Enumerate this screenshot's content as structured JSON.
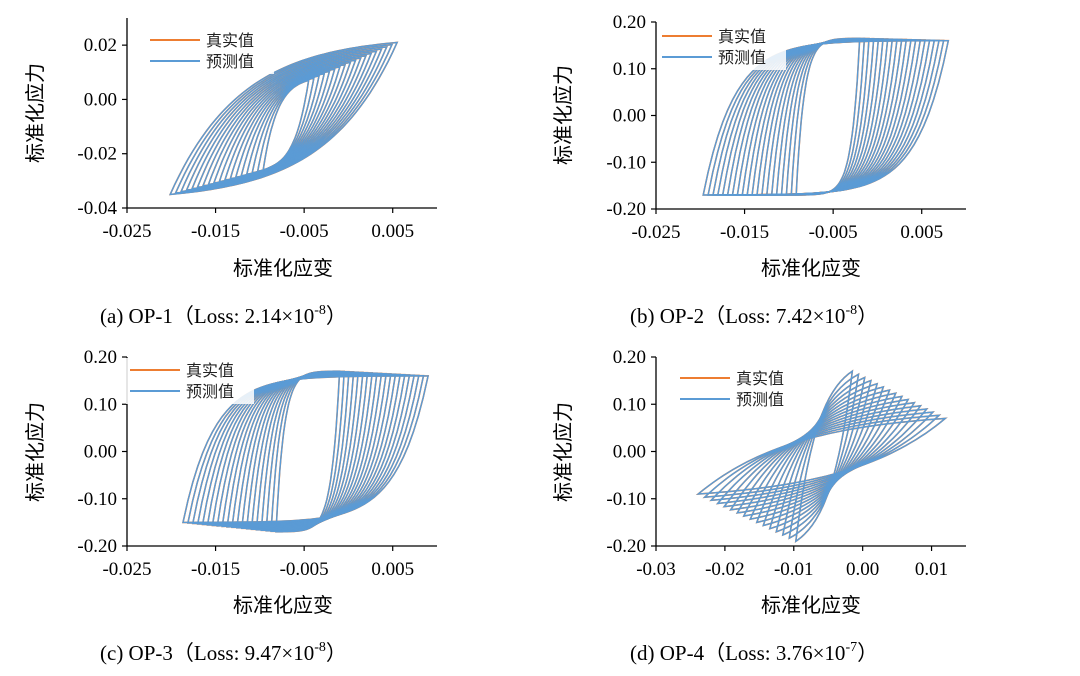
{
  "chart_data": [
    {
      "id": "a",
      "type": "line",
      "caption": "(a) OP-1（Loss: 2.14×10",
      "caption_exp": "-8",
      "caption_end": "）",
      "xlabel": "标准化应变",
      "ylabel": "标准化应力",
      "xlim": [
        -0.025,
        0.01
      ],
      "ylim": [
        -0.04,
        0.03
      ],
      "xticks": [
        "-0.025",
        "-0.015",
        "-0.005",
        "0.005"
      ],
      "xtick_values": [
        -0.025,
        -0.015,
        -0.005,
        0.005
      ],
      "yticks": [
        "0.02",
        "0.00",
        "-0.02",
        "-0.04"
      ],
      "ytick_values": [
        0.02,
        0.0,
        -0.02,
        -0.04
      ],
      "legend": [
        "真实值",
        "预测值"
      ],
      "legend_position": "top-left",
      "series": [
        {
          "name": "真实值",
          "color": "#ed7d31",
          "loops": {
            "count": 18,
            "amp_start": 0.0025,
            "amp_end": 0.0125,
            "center": -0.007,
            "y_pos_start": 0.007,
            "y_pos_end": 0.021,
            "y_neg_start": -0.026,
            "y_neg_end": -0.035,
            "y_neg_lead": 0.3,
            "k": 3.2
          }
        },
        {
          "name": "预测值",
          "color": "#5b9bd5",
          "loops": {
            "count": 18,
            "amp_start": 0.0025,
            "amp_end": 0.0125,
            "center": -0.007,
            "y_pos_start": 0.007,
            "y_pos_end": 0.021,
            "y_neg_start": -0.026,
            "y_neg_end": -0.035,
            "y_neg_lead": 0.3,
            "k": 3.2
          }
        }
      ]
    },
    {
      "id": "b",
      "type": "line",
      "caption": "(b) OP-2（Loss: 7.42×10",
      "caption_exp": "-8",
      "caption_end": "）",
      "xlabel": "标准化应变",
      "ylabel": "标准化应力",
      "xlim": [
        -0.025,
        0.01
      ],
      "ylim": [
        -0.2,
        0.2
      ],
      "xticks": [
        "-0.025",
        "-0.015",
        "-0.005",
        "0.005"
      ],
      "xtick_values": [
        -0.025,
        -0.015,
        -0.005,
        0.005
      ],
      "yticks": [
        "0.20",
        "0.10",
        "0.00",
        "-0.10",
        "-0.20"
      ],
      "ytick_values": [
        0.2,
        0.1,
        0.0,
        -0.1,
        -0.2
      ],
      "legend": [
        "真实值",
        "预测值"
      ],
      "legend_position": "top-left",
      "series": [
        {
          "name": "真实值",
          "color": "#ed7d31",
          "loops": {
            "count": 20,
            "amp_start": 0.0035,
            "amp_end": 0.0135,
            "center": -0.0055,
            "y_pos_start": 0.165,
            "y_pos_end": 0.16,
            "y_neg_start": -0.17,
            "y_neg_end": -0.17,
            "y_neg_lead": 0.0,
            "k": 8
          }
        },
        {
          "name": "预测值",
          "color": "#5b9bd5",
          "loops": {
            "count": 20,
            "amp_start": 0.0035,
            "amp_end": 0.0135,
            "center": -0.0055,
            "y_pos_start": 0.165,
            "y_pos_end": 0.16,
            "y_neg_start": -0.17,
            "y_neg_end": -0.17,
            "y_neg_lead": 0.0,
            "k": 8
          }
        }
      ]
    },
    {
      "id": "c",
      "type": "line",
      "caption": "(c) OP-3（Loss: 9.47×10",
      "caption_exp": "-8",
      "caption_end": "）",
      "xlabel": "标准化应变",
      "ylabel": "标准化应力",
      "xlim": [
        -0.025,
        0.01
      ],
      "ylim": [
        -0.2,
        0.2
      ],
      "xticks": [
        "-0.025",
        "-0.015",
        "-0.005",
        "0.005"
      ],
      "xtick_values": [
        -0.025,
        -0.015,
        -0.005,
        0.005
      ],
      "yticks": [
        "0.20",
        "0.10",
        "0.00",
        "-0.10",
        "-0.20"
      ],
      "ytick_values": [
        0.2,
        0.1,
        0.0,
        -0.1,
        -0.2
      ],
      "legend": [
        "真实值",
        "预测值"
      ],
      "legend_position": "top-left",
      "series": [
        {
          "name": "真实值",
          "color": "#ed7d31",
          "loops": {
            "count": 20,
            "amp_start": 0.0035,
            "amp_end": 0.0135,
            "center": -0.0045,
            "y_pos_start": 0.17,
            "y_pos_end": 0.16,
            "y_neg_start": -0.17,
            "y_neg_end": -0.15,
            "y_neg_lead": 0.0,
            "k": 8
          }
        },
        {
          "name": "预测值",
          "color": "#5b9bd5",
          "loops": {
            "count": 20,
            "amp_start": 0.0035,
            "amp_end": 0.0135,
            "center": -0.0045,
            "y_pos_start": 0.17,
            "y_pos_end": 0.16,
            "y_neg_start": -0.17,
            "y_neg_end": -0.15,
            "y_neg_lead": 0.0,
            "k": 8
          }
        }
      ]
    },
    {
      "id": "d",
      "type": "line",
      "caption": "(d) OP-4（Loss: 3.76×10",
      "caption_exp": "-7",
      "caption_end": "）",
      "xlabel": "标准化应变",
      "ylabel": "标准化应力",
      "xlim": [
        -0.03,
        0.015
      ],
      "ylim": [
        -0.2,
        0.2
      ],
      "xticks": [
        "-0.03",
        "-0.02",
        "-0.01",
        "0.00",
        "0.01"
      ],
      "xtick_values": [
        -0.03,
        -0.02,
        -0.01,
        0.0,
        0.01
      ],
      "yticks": [
        "0.20",
        "0.10",
        "0.00",
        "-0.10",
        "-0.20"
      ],
      "ytick_values": [
        0.2,
        0.1,
        0.0,
        -0.1,
        -0.2
      ],
      "legend": [
        "真实值",
        "预测值"
      ],
      "legend_position": "top-left",
      "series": [
        {
          "name": "真实值",
          "color": "#ed7d31",
          "loops": {
            "count": 16,
            "amp_start": 0.004,
            "amp_end": 0.0175,
            "center": -0.0055,
            "y_pos_start": 0.17,
            "y_pos_end": 0.07,
            "y_neg_start": -0.19,
            "y_neg_end": -0.09,
            "y_neg_lead": 0.0,
            "k": 2.5
          }
        },
        {
          "name": "预测值",
          "color": "#5b9bd5",
          "loops": {
            "count": 16,
            "amp_start": 0.004,
            "amp_end": 0.0175,
            "center": -0.0055,
            "y_pos_start": 0.17,
            "y_pos_end": 0.07,
            "y_neg_start": -0.19,
            "y_neg_end": -0.09,
            "y_neg_lead": 0.0,
            "k": 2.5
          }
        }
      ]
    }
  ]
}
